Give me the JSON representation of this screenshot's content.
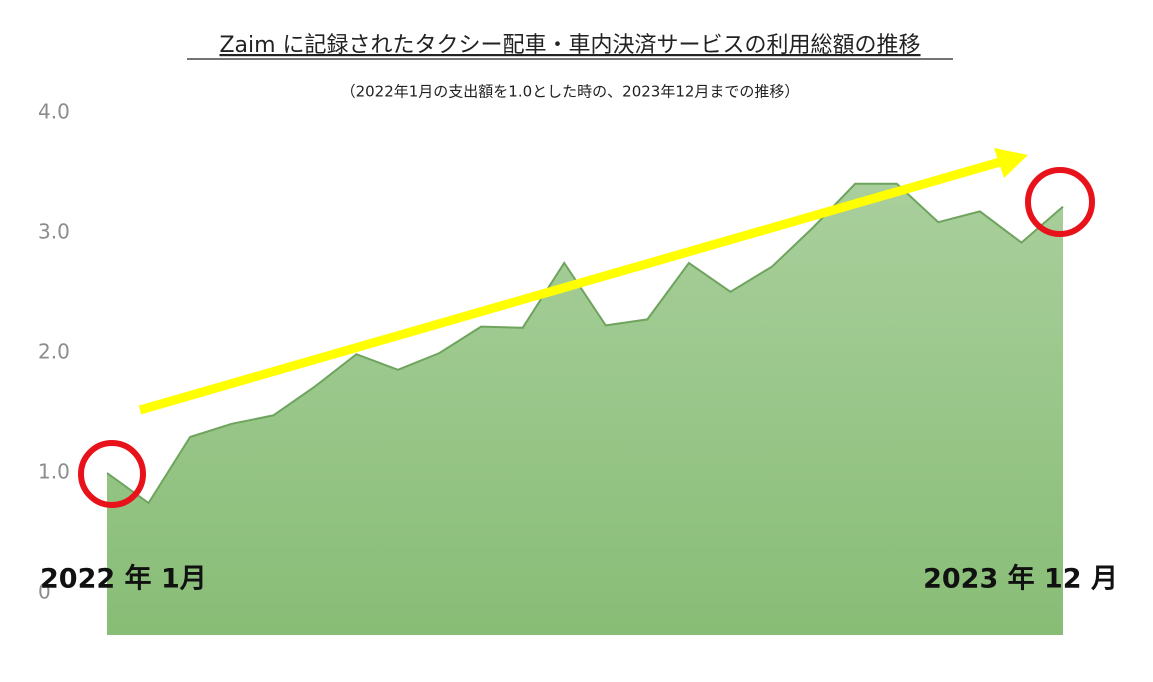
{
  "chart_data": {
    "type": "area",
    "title": "Zaim に記録されたタクシー配車・車内決済サービスの利用総額の推移",
    "subtitle": "（2022年1月の支出額を1.0とした時の、2023年12月までの推移）",
    "annotations": [
      "2022 年 1月",
      "2023 年 12 月"
    ],
    "categories": [
      null,
      null,
      null,
      null,
      null,
      null,
      null,
      null,
      null,
      null,
      null,
      null,
      null,
      null,
      null,
      null,
      null,
      null,
      null,
      null,
      null,
      null,
      null,
      null
    ],
    "values": [
      1.0,
      0.75,
      1.3,
      1.41,
      1.48,
      1.72,
      1.99,
      1.86,
      2.0,
      2.22,
      2.21,
      2.75,
      2.23,
      2.28,
      2.75,
      2.51,
      2.72,
      3.05,
      3.41,
      3.41,
      3.09,
      3.18,
      2.92,
      3.22
    ],
    "color": "#9cc78a",
    "ylim": [
      0,
      4
    ],
    "yticks": [
      0,
      {
        "value": 1,
        "label": "1.0"
      },
      {
        "value": 2,
        "label": "2.0"
      },
      {
        "value": 3,
        "label": "3.0"
      },
      {
        "value": 4,
        "label": "4.0"
      }
    ],
    "grid": false
  }
}
